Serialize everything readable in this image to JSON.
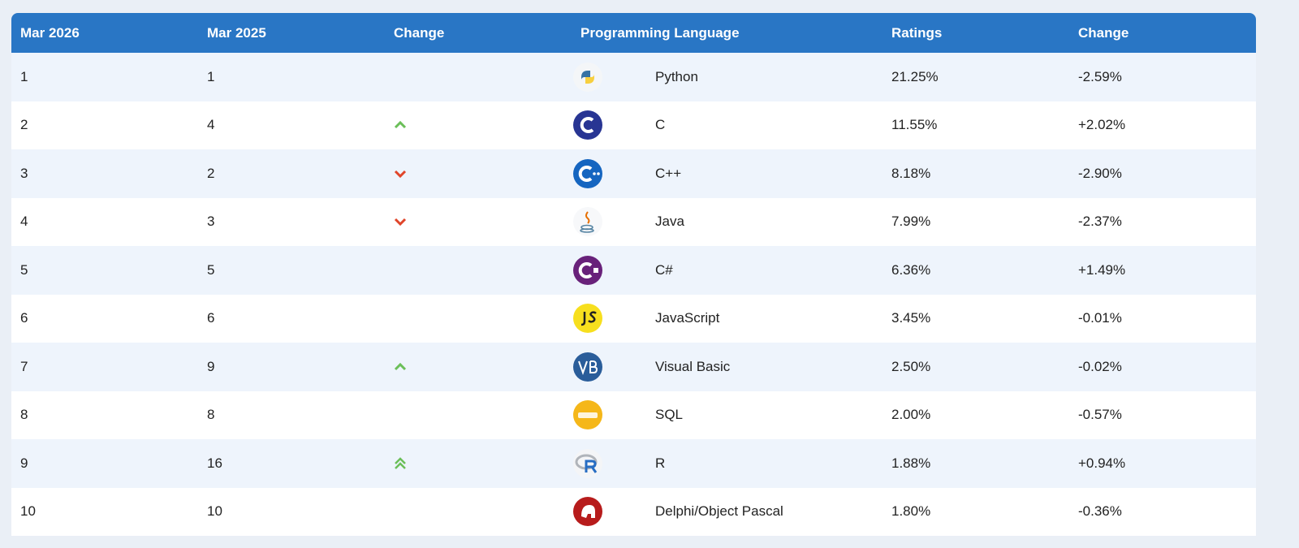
{
  "table": {
    "header": [
      "Mar 2026",
      "Mar 2025",
      "Change",
      "Programming Language",
      "Ratings",
      "Change"
    ],
    "rows": [
      [
        "1",
        "1",
        "Python",
        "21.25%",
        "-2.59%"
      ],
      [
        "2",
        "4",
        "C",
        "11.55%",
        "+2.02%"
      ],
      [
        "3",
        "2",
        "C++",
        "8.18%",
        "-2.90%"
      ],
      [
        "4",
        "3",
        "Java",
        "7.99%",
        "-2.37%"
      ],
      [
        "5",
        "5",
        "C#",
        "6.36%",
        "+1.49%"
      ],
      [
        "6",
        "6",
        "JavaScript",
        "3.45%",
        "-0.01%"
      ],
      [
        "7",
        "9",
        "Visual Basic",
        "2.50%",
        "-0.02%"
      ],
      [
        "8",
        "8",
        "SQL",
        "2.00%",
        "-0.57%"
      ],
      [
        "9",
        "16",
        "R",
        "1.88%",
        "+0.94%"
      ],
      [
        "10",
        "10",
        "Delphi/Object Pascal",
        "1.80%",
        "-0.36%"
      ]
    ]
  }
}
